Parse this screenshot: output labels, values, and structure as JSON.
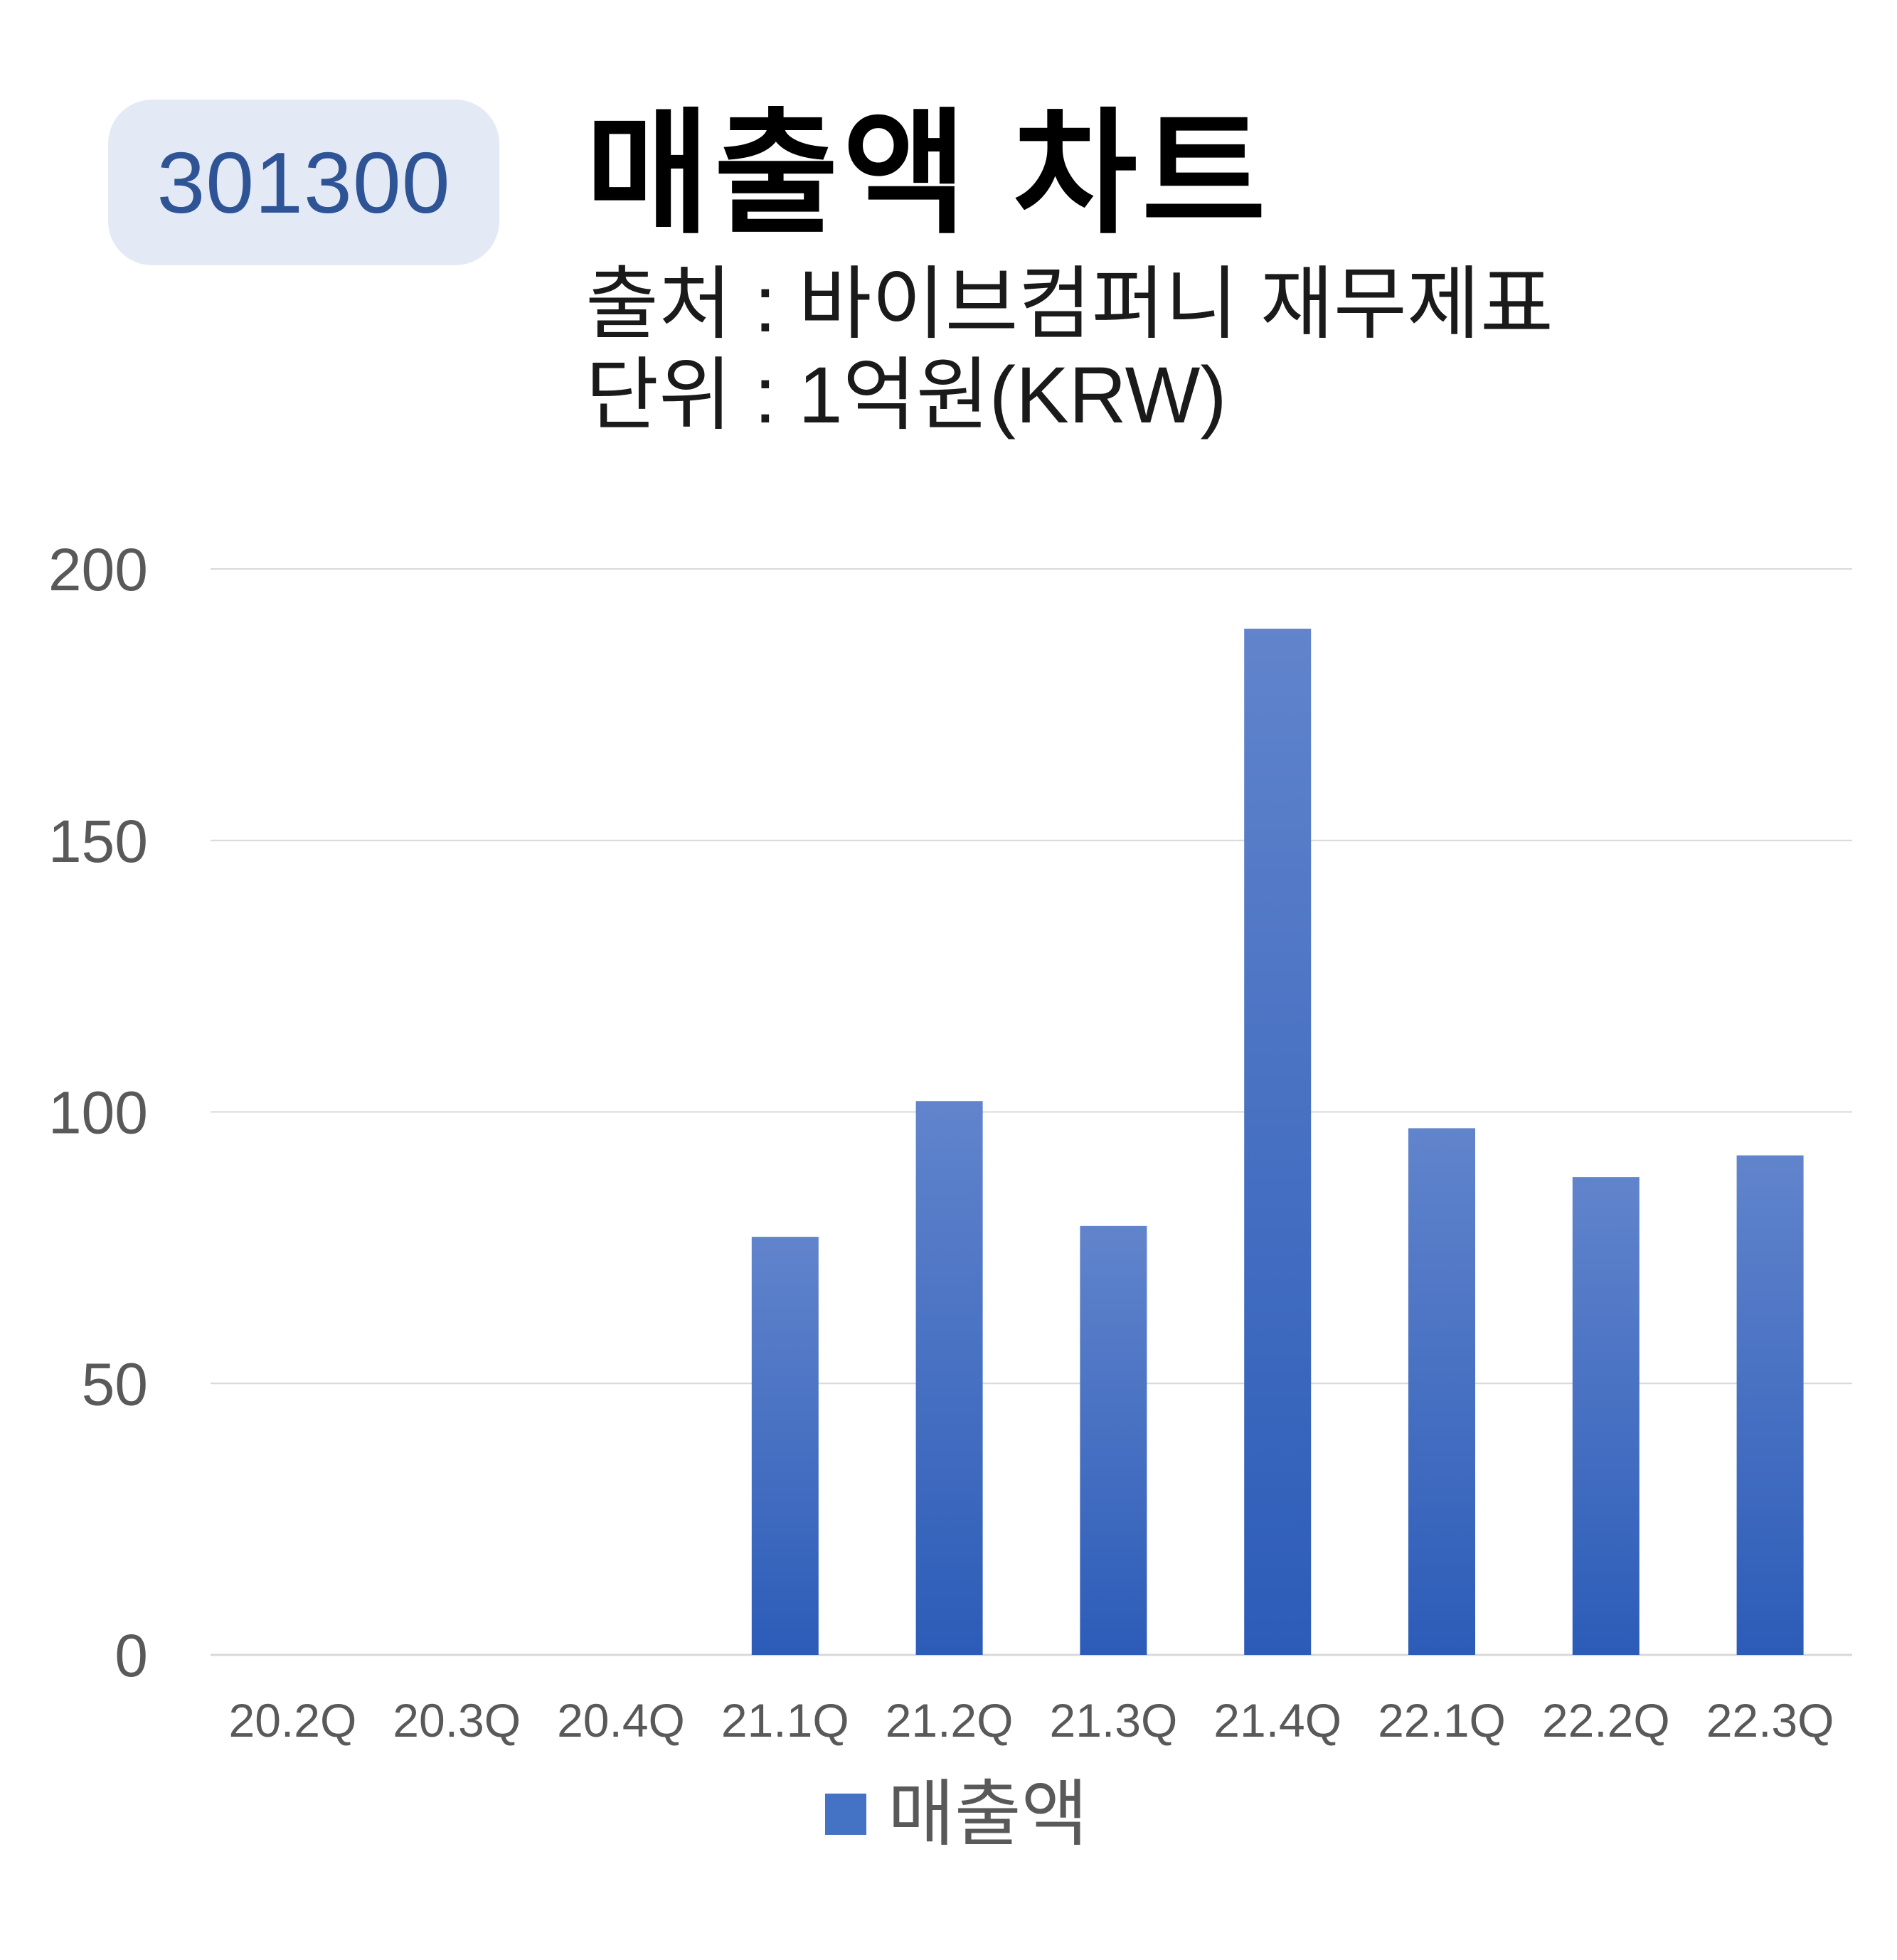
{
  "header": {
    "code": "301300",
    "title": "매출액 차트",
    "source": "출처 : 바이브컴퍼니 재무제표",
    "unit": "단위 : 1억원(KRW)"
  },
  "colors": {
    "bar": "#4472c4",
    "bar_top": "#6184cc",
    "bar_bottom": "#2c5cb8",
    "badge_bg": "#e3e9f5",
    "badge_text": "#2f5496",
    "grid": "#d9d9d9",
    "axis_text": "#595959"
  },
  "chart_data": {
    "type": "bar",
    "categories": [
      "20.2Q",
      "20.3Q",
      "20.4Q",
      "21.1Q",
      "21.2Q",
      "21.3Q",
      "21.4Q",
      "22.1Q",
      "22.2Q",
      "22.3Q"
    ],
    "series": [
      {
        "name": "매출액",
        "values": [
          0,
          0,
          0,
          77,
          102,
          79,
          189,
          97,
          88,
          92
        ]
      }
    ],
    "yticks": [
      0,
      50,
      100,
      150,
      200
    ],
    "ylim": [
      0,
      200
    ],
    "grid": true,
    "legend": "bottom"
  }
}
